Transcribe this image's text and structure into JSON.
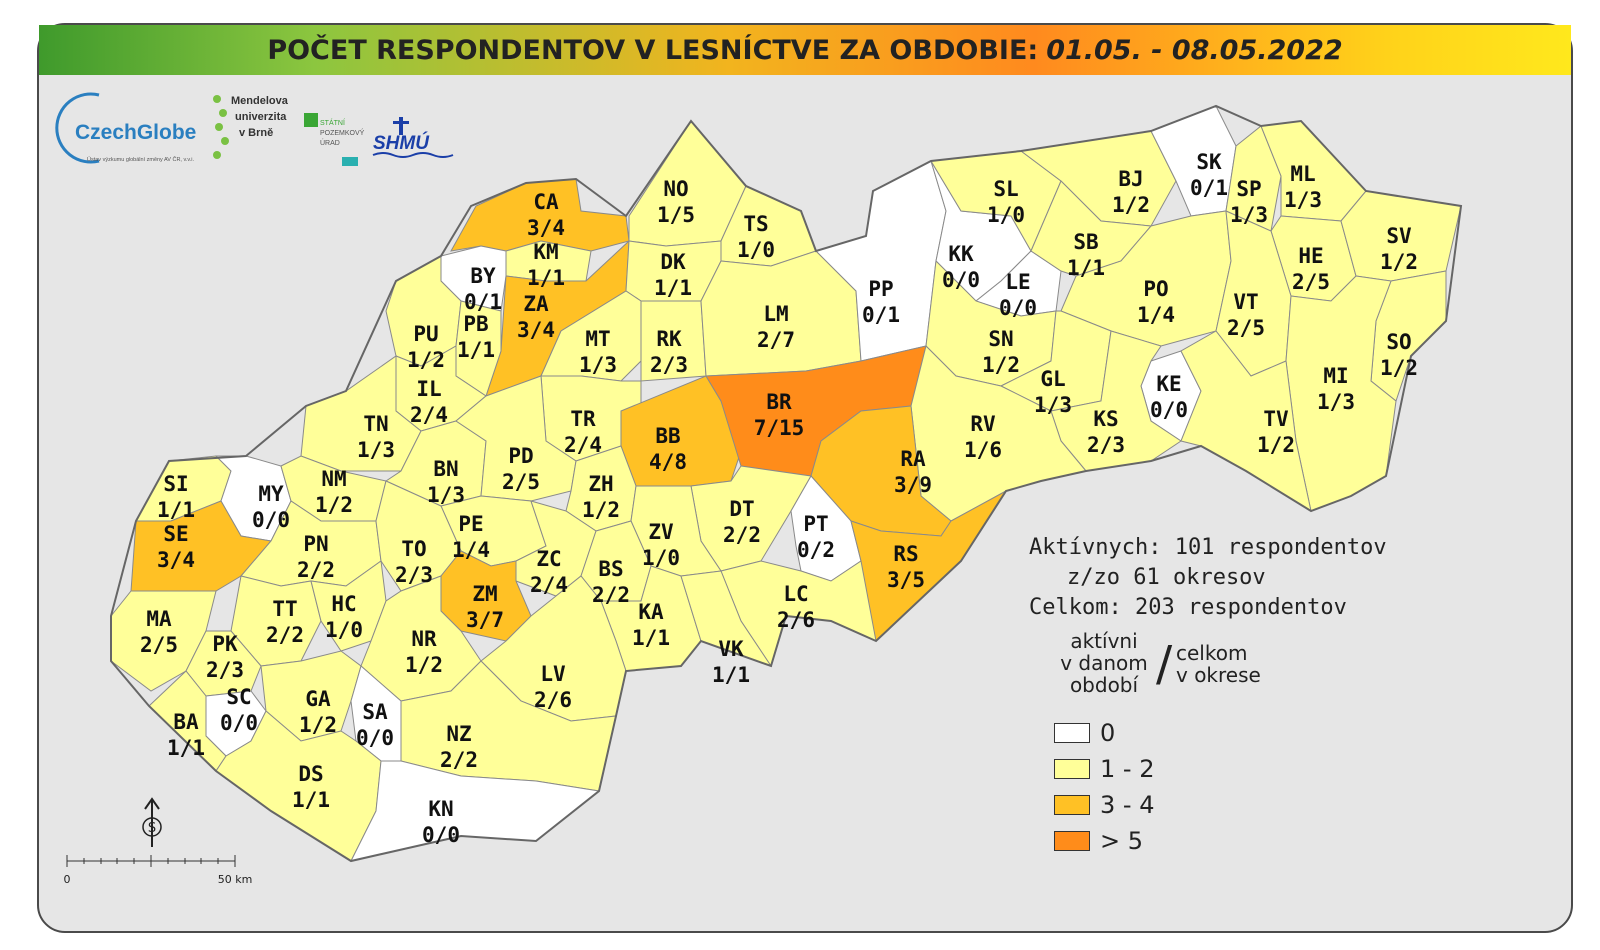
{
  "title": {
    "text": "POČET RESPONDENTOV V LESNÍCTVE ZA OBDOBIE:",
    "period": "01.05. - 08.05.2022"
  },
  "logos": {
    "czechglobe": "CzechGlobe",
    "czechglobe_sub": "Ústav výzkumu globální změny AV ČR, v.v.i.",
    "mendel": [
      "Mendelova",
      "univerzita",
      "v Brně"
    ],
    "spu": [
      "STÁTNÍ",
      "POZEMKOVÝ",
      "ÚRAD"
    ],
    "shmu": "SHMÚ"
  },
  "colors": {
    "zero": "#ffffff",
    "low": "#ffff99",
    "mid": "#ffc125",
    "high": "#ff8c1a",
    "border": "#8a8a8a"
  },
  "districts": [
    {
      "code": "CA",
      "value": "3/4",
      "cls": "mid"
    },
    {
      "code": "KM",
      "value": "1/1",
      "cls": "low"
    },
    {
      "code": "BY",
      "value": "0/1",
      "cls": "zero"
    },
    {
      "code": "ZA",
      "value": "3/4",
      "cls": "mid"
    },
    {
      "code": "NO",
      "value": "1/5",
      "cls": "low"
    },
    {
      "code": "TS",
      "value": "1/0",
      "cls": "low"
    },
    {
      "code": "DK",
      "value": "1/1",
      "cls": "low"
    },
    {
      "code": "PU",
      "value": "1/2",
      "cls": "low"
    },
    {
      "code": "PB",
      "value": "1/1",
      "cls": "low"
    },
    {
      "code": "MT",
      "value": "1/3",
      "cls": "low"
    },
    {
      "code": "RK",
      "value": "2/3",
      "cls": "low"
    },
    {
      "code": "LM",
      "value": "2/7",
      "cls": "low"
    },
    {
      "code": "PP",
      "value": "0/1",
      "cls": "zero"
    },
    {
      "code": "KK",
      "value": "0/0",
      "cls": "zero"
    },
    {
      "code": "LE",
      "value": "0/0",
      "cls": "zero"
    },
    {
      "code": "SL",
      "value": "1/0",
      "cls": "low"
    },
    {
      "code": "BJ",
      "value": "1/2",
      "cls": "low"
    },
    {
      "code": "SK",
      "value": "0/1",
      "cls": "zero"
    },
    {
      "code": "SP",
      "value": "1/3",
      "cls": "low"
    },
    {
      "code": "ML",
      "value": "1/3",
      "cls": "low"
    },
    {
      "code": "SB",
      "value": "1/1",
      "cls": "low"
    },
    {
      "code": "HE",
      "value": "2/5",
      "cls": "low"
    },
    {
      "code": "SV",
      "value": "1/2",
      "cls": "low"
    },
    {
      "code": "PO",
      "value": "1/4",
      "cls": "low"
    },
    {
      "code": "VT",
      "value": "2/5",
      "cls": "low"
    },
    {
      "code": "SO",
      "value": "1/2",
      "cls": "low"
    },
    {
      "code": "SN",
      "value": "1/2",
      "cls": "low"
    },
    {
      "code": "GL",
      "value": "1/3",
      "cls": "low"
    },
    {
      "code": "KE",
      "value": "0/0",
      "cls": "zero"
    },
    {
      "code": "MI",
      "value": "1/3",
      "cls": "low"
    },
    {
      "code": "KS",
      "value": "2/3",
      "cls": "low"
    },
    {
      "code": "TV",
      "value": "1/2",
      "cls": "low"
    },
    {
      "code": "IL",
      "value": "2/4",
      "cls": "low"
    },
    {
      "code": "TN",
      "value": "1/3",
      "cls": "low"
    },
    {
      "code": "TR",
      "value": "2/4",
      "cls": "low"
    },
    {
      "code": "BB",
      "value": "4/8",
      "cls": "mid"
    },
    {
      "code": "BR",
      "value": "7/15",
      "cls": "high"
    },
    {
      "code": "RV",
      "value": "1/6",
      "cls": "low"
    },
    {
      "code": "RA",
      "value": "3/9",
      "cls": "mid"
    },
    {
      "code": "SI",
      "value": "1/1",
      "cls": "low"
    },
    {
      "code": "MY",
      "value": "0/0",
      "cls": "zero"
    },
    {
      "code": "NM",
      "value": "1/2",
      "cls": "low"
    },
    {
      "code": "BN",
      "value": "1/3",
      "cls": "low"
    },
    {
      "code": "PD",
      "value": "2/5",
      "cls": "low"
    },
    {
      "code": "ZH",
      "value": "1/2",
      "cls": "low"
    },
    {
      "code": "SE",
      "value": "3/4",
      "cls": "mid"
    },
    {
      "code": "PN",
      "value": "2/2",
      "cls": "low"
    },
    {
      "code": "PE",
      "value": "1/4",
      "cls": "low"
    },
    {
      "code": "TO",
      "value": "2/3",
      "cls": "low"
    },
    {
      "code": "DT",
      "value": "2/2",
      "cls": "low"
    },
    {
      "code": "PT",
      "value": "0/2",
      "cls": "zero"
    },
    {
      "code": "ZV",
      "value": "1/0",
      "cls": "low"
    },
    {
      "code": "ZC",
      "value": "2/4",
      "cls": "low"
    },
    {
      "code": "BS",
      "value": "2/2",
      "cls": "low"
    },
    {
      "code": "RS",
      "value": "3/5",
      "cls": "mid"
    },
    {
      "code": "ZM",
      "value": "3/7",
      "cls": "mid"
    },
    {
      "code": "MA",
      "value": "2/5",
      "cls": "low"
    },
    {
      "code": "TT",
      "value": "2/2",
      "cls": "low"
    },
    {
      "code": "HC",
      "value": "1/0",
      "cls": "low"
    },
    {
      "code": "KA",
      "value": "1/1",
      "cls": "low"
    },
    {
      "code": "LC",
      "value": "2/6",
      "cls": "low"
    },
    {
      "code": "NR",
      "value": "1/2",
      "cls": "low"
    },
    {
      "code": "PK",
      "value": "2/3",
      "cls": "low"
    },
    {
      "code": "VK",
      "value": "1/1",
      "cls": "low"
    },
    {
      "code": "LV",
      "value": "2/6",
      "cls": "low"
    },
    {
      "code": "SC",
      "value": "0/0",
      "cls": "zero"
    },
    {
      "code": "GA",
      "value": "1/2",
      "cls": "low"
    },
    {
      "code": "SA",
      "value": "0/0",
      "cls": "zero"
    },
    {
      "code": "BA",
      "value": "1/1",
      "cls": "low"
    },
    {
      "code": "NZ",
      "value": "2/2",
      "cls": "low"
    },
    {
      "code": "DS",
      "value": "1/1",
      "cls": "low"
    },
    {
      "code": "KN",
      "value": "0/0",
      "cls": "zero"
    }
  ],
  "stats": {
    "active": "Aktívnych: 101 respondentov",
    "districts": "z/zo 61 okresov",
    "total": "Celkom: 203 respondentov"
  },
  "legend": {
    "active_label": [
      "aktívni",
      "v danom",
      "období"
    ],
    "slash": "/",
    "total_label": [
      "celkom",
      "v okrese"
    ],
    "items": [
      {
        "label": "0",
        "color": "#ffffff"
      },
      {
        "label": "1 - 2",
        "color": "#ffff99"
      },
      {
        "label": "3 - 4",
        "color": "#ffc125"
      },
      {
        "label": "> 5",
        "color": "#ff8c1a"
      }
    ]
  },
  "scale": {
    "zero": "0",
    "max": "50 km"
  },
  "north_symbol": "S"
}
